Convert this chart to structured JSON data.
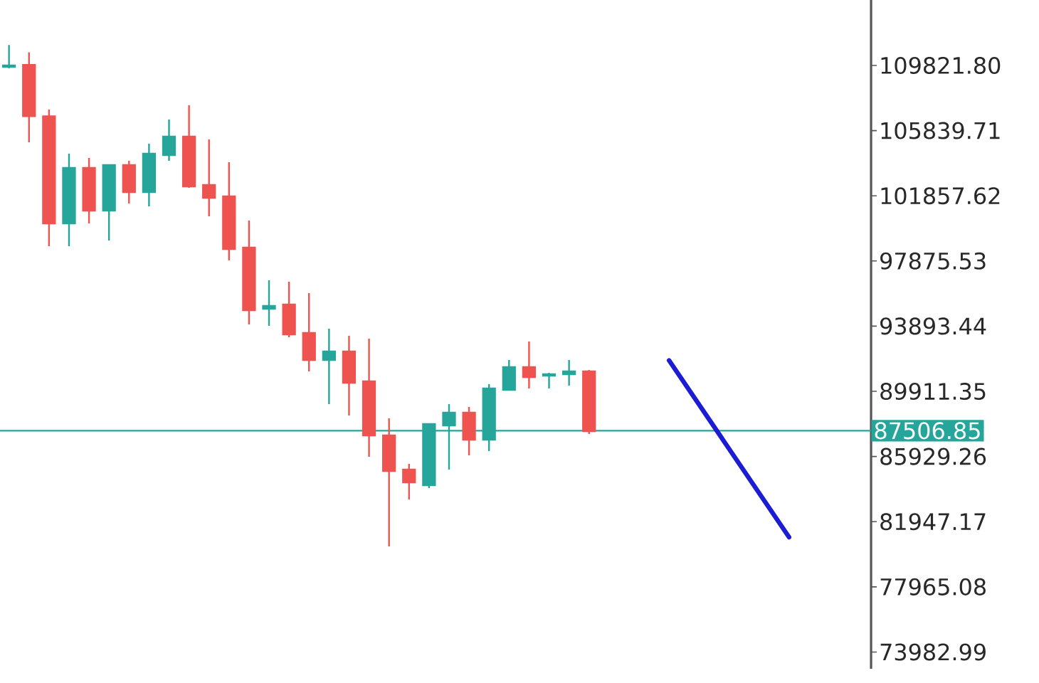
{
  "chart_data": {
    "type": "candlestick",
    "categories": [
      null,
      null,
      null,
      null,
      null,
      null,
      null,
      null,
      null,
      null,
      null,
      null,
      null,
      null,
      null,
      null,
      null,
      null,
      null,
      null,
      null,
      null,
      null,
      null,
      null,
      null,
      null,
      null,
      null,
      null,
      null,
      null,
      null,
      null,
      null,
      null,
      null,
      null,
      null,
      null
    ],
    "ohlc": [
      [
        109735,
        111065,
        109648,
        109822
      ],
      [
        109850,
        110630,
        105127,
        106718
      ],
      [
        106718,
        107127,
        98780,
        100171
      ],
      [
        100171,
        104432,
        98780,
        103562
      ],
      [
        103562,
        104171,
        100171,
        100954
      ],
      [
        100954,
        103736,
        99128,
        103736
      ],
      [
        103736,
        103997,
        101389,
        102084
      ],
      [
        102084,
        105040,
        101215,
        104432
      ],
      [
        104345,
        106518,
        103997,
        105475
      ],
      [
        105475,
        107388,
        102345,
        102432
      ],
      [
        102519,
        105301,
        100606,
        101736
      ],
      [
        101823,
        103910,
        97911,
        98606
      ],
      [
        98693,
        100345,
        93998,
        94868
      ],
      [
        94955,
        96694,
        93911,
        95128
      ],
      [
        95216,
        96607,
        93216,
        93389
      ],
      [
        93476,
        95911,
        91129,
        91825
      ],
      [
        91825,
        93737,
        89129,
        92346
      ],
      [
        92346,
        93302,
        88434,
        90433
      ],
      [
        90520,
        93129,
        85913,
        87217
      ],
      [
        87217,
        88260,
        80436,
        85044
      ],
      [
        85131,
        85478,
        83305,
        84348
      ],
      [
        84174,
        87913,
        84000,
        87913
      ],
      [
        87826,
        89129,
        85131,
        88608
      ],
      [
        88608,
        88955,
        86000,
        86956
      ],
      [
        86956,
        90346,
        86261,
        90086
      ],
      [
        89999,
        91825,
        89999,
        91390
      ],
      [
        91390,
        92955,
        90086,
        90781
      ],
      [
        90868,
        91042,
        90086,
        90955
      ],
      [
        90955,
        91825,
        90259,
        91129
      ],
      [
        91129,
        91216,
        87304,
        87478
      ],
      null,
      null,
      null,
      null,
      null,
      null,
      null,
      null,
      null,
      null
    ],
    "colors": [
      "#26a69a",
      "#ef5350",
      "#ef5350",
      "#26a69a",
      "#ef5350",
      "#26a69a",
      "#ef5350",
      "#26a69a",
      "#26a69a",
      "#ef5350",
      "#ef5350",
      "#ef5350",
      "#ef5350",
      "#26a69a",
      "#ef5350",
      "#ef5350",
      "#26a69a",
      "#ef5350",
      "#ef5350",
      "#ef5350",
      "#ef5350",
      "#26a69a",
      "#26a69a",
      "#ef5350",
      "#26a69a",
      "#26a69a",
      "#ef5350",
      "#26a69a",
      "#26a69a",
      "#ef5350",
      null,
      null,
      null,
      null,
      null,
      null,
      null,
      null,
      null,
      null
    ],
    "series": [
      {
        "type": "line",
        "values": [
          null,
          null,
          null,
          null,
          null,
          null,
          null,
          null,
          null,
          null,
          null,
          null,
          null,
          null,
          null,
          null,
          null,
          null,
          null,
          null,
          null,
          null,
          null,
          null,
          null,
          null,
          null,
          null,
          null,
          null,
          null,
          null,
          null,
          91800,
          null,
          null,
          null,
          null,
          null,
          81000
        ],
        "color": "#1c1cd4"
      }
    ],
    "ref_lines": [
      {
        "axis": "y",
        "value": 87506.85,
        "label": "87506.85",
        "color": "#26a69a"
      }
    ],
    "ylim": [
      72960,
      113820
    ],
    "yticks": [
      {
        "value": 109821.8,
        "label": "109821.80"
      },
      {
        "value": 105839.71,
        "label": "105839.71"
      },
      {
        "value": 101857.62,
        "label": "101857.62"
      },
      {
        "value": 97875.53,
        "label": "97875.53"
      },
      {
        "value": 93893.44,
        "label": "93893.44"
      },
      {
        "value": 89911.35,
        "label": "89911.35"
      },
      {
        "value": 85929.26,
        "label": "85929.26"
      },
      {
        "value": 81947.17,
        "label": "81947.17"
      },
      {
        "value": 77965.08,
        "label": "77965.08"
      },
      {
        "value": 73982.99,
        "label": "73982.99"
      }
    ],
    "tick_labels": "y",
    "grid": false
  }
}
